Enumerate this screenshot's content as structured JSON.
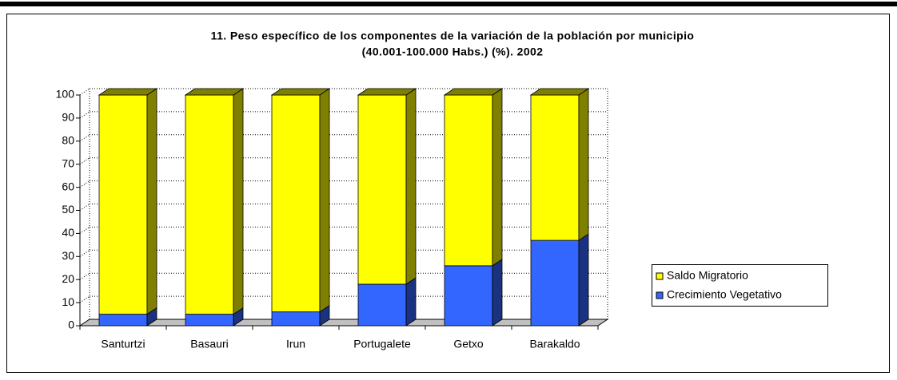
{
  "chart_data": {
    "type": "bar3d_stacked",
    "title": "11. Peso específico de los componentes de la variación de la población por municipio",
    "subtitle": "(40.001-100.000 Habs.) (%). 2002",
    "categories": [
      "Santurtzi",
      "Basauri",
      "Irun",
      "Portugalete",
      "Getxo",
      "Barakaldo"
    ],
    "series": [
      {
        "name": "Crecimiento Vegetativo",
        "color": "#3366ff",
        "values": [
          5,
          5,
          6,
          18,
          26,
          37
        ]
      },
      {
        "name": "Saldo Migratorio",
        "color": "#ffff00",
        "values": [
          95,
          95,
          94,
          82,
          74,
          63
        ]
      }
    ],
    "ylim": [
      0,
      100
    ],
    "yticks": [
      0,
      10,
      20,
      30,
      40,
      50,
      60,
      70,
      80,
      90,
      100
    ],
    "grid": true
  }
}
